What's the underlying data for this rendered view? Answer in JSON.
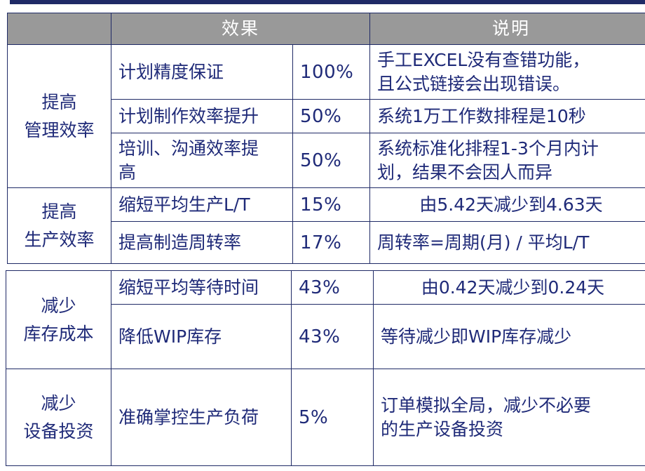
{
  "headers": {
    "effect": "效果",
    "explanation": "说明"
  },
  "groups": [
    {
      "category": [
        "提高",
        "管理效率"
      ],
      "rows": [
        {
          "item": [
            "计划精度保证"
          ],
          "value": "100%",
          "note": [
            "手工EXCEL没有查错功能，",
            "且公式链接会出现错误。"
          ]
        },
        {
          "item": [
            "计划制作效率提升"
          ],
          "value": "50%",
          "note": [
            "系统1万工作数排程是10秒"
          ]
        },
        {
          "item": [
            "培训、沟通效率提",
            "高"
          ],
          "value": "50%",
          "note": [
            "系统标准化排程1-3个月内计",
            "划，结果不会因人而异"
          ]
        }
      ]
    },
    {
      "category": [
        "提高",
        "生产效率"
      ],
      "rows": [
        {
          "item": [
            "缩短平均生产L/T"
          ],
          "value": "15%",
          "note": [
            "由5.42天减少到4.63天"
          ]
        },
        {
          "item": [
            "提高制造周转率"
          ],
          "value": "17%",
          "note": [
            "周转率=周期(月) / 平均L/T"
          ]
        }
      ]
    },
    {
      "category": [
        "减少",
        "库存成本"
      ],
      "rows": [
        {
          "item": [
            "缩短平均等待时间"
          ],
          "value": "43%",
          "note": [
            "由0.42天减少到0.24天"
          ]
        },
        {
          "item": [
            "降低WIP库存"
          ],
          "value": "43%",
          "note": [
            "等待减少即WIP库存减少"
          ]
        }
      ]
    },
    {
      "category": [
        "减少",
        "设备投资"
      ],
      "rows": [
        {
          "item": [
            "准确掌控生产负荷"
          ],
          "value": "5%",
          "note": [
            "订单模拟全局，减少不必要",
            "的生产设备投资"
          ]
        }
      ]
    }
  ]
}
